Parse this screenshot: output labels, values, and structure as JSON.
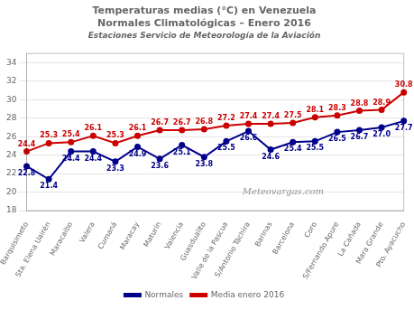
{
  "chart_data": {
    "type": "line",
    "title": [
      "Temperaturas medias (°C) en Venezuela",
      "Normales Climatológicas – Enero 2016"
    ],
    "subtitle": "Estaciones Servicio de Meteorología de la Aviación",
    "annotations": [
      "Meteovargas.com"
    ],
    "categories": [
      "Barquisimeto",
      "Sta. Elena Uairén",
      "Maracaibo",
      "Valera",
      "Cumaná",
      "Maracay",
      "Maturín",
      "Valencia",
      "Guasdualito",
      "Valle de la Pascua",
      "S/Antonio Táchira",
      "Barinas",
      "Barcelona",
      "Coro",
      "S/Fernando Apure",
      "La Cañada",
      "Mara Grande",
      "Pto. Ayacucho"
    ],
    "series": [
      {
        "name": "Normales",
        "color": "#00008B",
        "values": [
          22.8,
          21.4,
          24.4,
          24.4,
          23.3,
          24.9,
          23.6,
          25.1,
          23.8,
          25.5,
          26.6,
          24.6,
          25.4,
          25.5,
          26.5,
          26.7,
          27.0,
          27.7
        ],
        "value_labels": [
          "22.8",
          "21.4",
          "24.4",
          "24.4",
          "23.3",
          "24.9",
          "23.6",
          "25.1",
          "23.8",
          "25.5",
          "26.6",
          "24.6",
          "25.4",
          "25.5",
          "26.5",
          "26.7",
          "27.0",
          "27.7"
        ]
      },
      {
        "name": "Media enero 2016",
        "color": "#CC0000",
        "values": [
          24.4,
          25.3,
          25.4,
          26.1,
          25.3,
          26.1,
          26.7,
          26.7,
          26.8,
          27.2,
          27.4,
          27.4,
          27.5,
          28.1,
          28.3,
          28.8,
          28.9,
          30.8
        ]
      }
    ],
    "ylim": [
      18,
      35
    ],
    "yticks": [
      18,
      20,
      22,
      24,
      26,
      28,
      30,
      32,
      34
    ],
    "grid": true,
    "legend": "bottom",
    "data_labels": true,
    "marker": "circle"
  }
}
